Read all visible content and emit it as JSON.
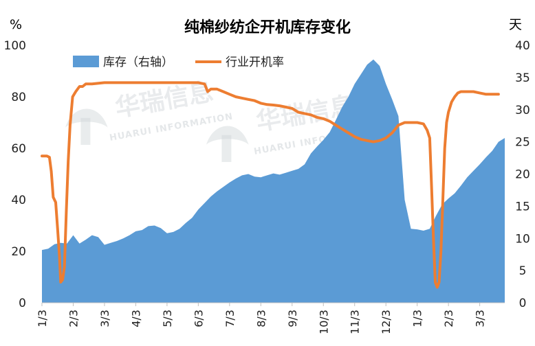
{
  "chart_data": {
    "type": "line",
    "title": "纯棉纱纺企开机库存变化",
    "left_axis_unit": "%",
    "right_axis_unit": "天",
    "left_ylim": [
      0,
      100
    ],
    "right_ylim": [
      0,
      40
    ],
    "left_ticks": [
      "0",
      "20",
      "40",
      "60",
      "80",
      "100"
    ],
    "right_ticks": [
      "0",
      "5",
      "10",
      "15",
      "20",
      "25",
      "30",
      "35",
      "40"
    ],
    "x_ticks": [
      "1/3",
      "2/3",
      "3/3",
      "4/3",
      "5/3",
      "6/3",
      "7/3",
      "8/3",
      "9/3",
      "10/3",
      "11/3",
      "12/3",
      "1/3",
      "2/3",
      "3/3"
    ],
    "x_range": [
      0,
      74
    ],
    "x_tick_positions": [
      0,
      5,
      10,
      15,
      20,
      25,
      30,
      35,
      40,
      45,
      50,
      55,
      60,
      65,
      70
    ],
    "series": [
      {
        "name": "库存（右轴）",
        "kind": "area",
        "axis": "right",
        "color": "#5b9bd5",
        "points": [
          [
            0,
            8.2
          ],
          [
            1,
            8.4
          ],
          [
            2,
            9.1
          ],
          [
            3,
            9.3
          ],
          [
            4,
            9.2
          ],
          [
            5,
            10.5
          ],
          [
            6,
            9.2
          ],
          [
            7,
            9.8
          ],
          [
            8,
            10.5
          ],
          [
            9,
            10.2
          ],
          [
            10,
            9.0
          ],
          [
            11,
            9.3
          ],
          [
            12,
            9.6
          ],
          [
            13,
            10.0
          ],
          [
            14,
            10.5
          ],
          [
            15,
            11.1
          ],
          [
            16,
            11.3
          ],
          [
            17,
            11.9
          ],
          [
            18,
            12.0
          ],
          [
            19,
            11.6
          ],
          [
            20,
            10.8
          ],
          [
            21,
            11.0
          ],
          [
            22,
            11.5
          ],
          [
            23,
            12.4
          ],
          [
            24,
            13.2
          ],
          [
            25,
            14.5
          ],
          [
            26,
            15.5
          ],
          [
            27,
            16.5
          ],
          [
            28,
            17.3
          ],
          [
            29,
            18.0
          ],
          [
            30,
            18.7
          ],
          [
            31,
            19.3
          ],
          [
            32,
            19.8
          ],
          [
            33,
            20.0
          ],
          [
            34,
            19.6
          ],
          [
            35,
            19.5
          ],
          [
            36,
            19.8
          ],
          [
            37,
            20.1
          ],
          [
            38,
            19.9
          ],
          [
            39,
            20.2
          ],
          [
            40,
            20.5
          ],
          [
            41,
            20.8
          ],
          [
            42,
            21.5
          ],
          [
            43,
            23.2
          ],
          [
            44,
            24.3
          ],
          [
            45,
            25.3
          ],
          [
            46,
            26.5
          ],
          [
            47,
            28.4
          ],
          [
            48,
            30.4
          ],
          [
            49,
            32.0
          ],
          [
            50,
            34.0
          ],
          [
            51,
            35.5
          ],
          [
            52,
            37.0
          ],
          [
            53,
            37.8
          ],
          [
            54,
            36.8
          ],
          [
            55,
            34.0
          ],
          [
            56,
            31.6
          ],
          [
            57,
            29.0
          ],
          [
            58,
            16.0
          ],
          [
            59,
            11.5
          ],
          [
            60,
            11.4
          ],
          [
            61,
            11.2
          ],
          [
            62,
            11.5
          ],
          [
            63,
            13.5
          ],
          [
            64,
            15.3
          ],
          [
            65,
            16.2
          ],
          [
            66,
            17.0
          ],
          [
            67,
            18.2
          ],
          [
            68,
            19.5
          ],
          [
            69,
            20.5
          ],
          [
            70,
            21.5
          ],
          [
            71,
            22.6
          ],
          [
            72,
            23.6
          ],
          [
            73,
            25.0
          ],
          [
            74,
            25.6
          ]
        ]
      },
      {
        "name": "行业开机率",
        "kind": "line",
        "axis": "left",
        "color": "#ed7d31",
        "points": [
          [
            0,
            57
          ],
          [
            0.8,
            57
          ],
          [
            1.2,
            56.5
          ],
          [
            1.5,
            51
          ],
          [
            1.8,
            41
          ],
          [
            2.2,
            39
          ],
          [
            2.5,
            29
          ],
          [
            2.8,
            18
          ],
          [
            3.0,
            8
          ],
          [
            3.3,
            9
          ],
          [
            3.6,
            14
          ],
          [
            3.9,
            36
          ],
          [
            4.2,
            55
          ],
          [
            4.5,
            69
          ],
          [
            4.9,
            80
          ],
          [
            5.4,
            82
          ],
          [
            6,
            84
          ],
          [
            6.5,
            84
          ],
          [
            7,
            85
          ],
          [
            8,
            85
          ],
          [
            10,
            85.5
          ],
          [
            15,
            85.5
          ],
          [
            20,
            85.5
          ],
          [
            25,
            85.5
          ],
          [
            26,
            85
          ],
          [
            26.5,
            82
          ],
          [
            27,
            83
          ],
          [
            28,
            83
          ],
          [
            29,
            82
          ],
          [
            30,
            81
          ],
          [
            31,
            80
          ],
          [
            32,
            79.5
          ],
          [
            33,
            79
          ],
          [
            34,
            78.5
          ],
          [
            35,
            77.5
          ],
          [
            36,
            77
          ],
          [
            37,
            76.8
          ],
          [
            38,
            76.5
          ],
          [
            39,
            76
          ],
          [
            40,
            75.5
          ],
          [
            41,
            74
          ],
          [
            42,
            73.5
          ],
          [
            43,
            73
          ],
          [
            44,
            72
          ],
          [
            45,
            71.5
          ],
          [
            46,
            70.5
          ],
          [
            47,
            69
          ],
          [
            48,
            67.5
          ],
          [
            49,
            66
          ],
          [
            50,
            64.5
          ],
          [
            51,
            63.5
          ],
          [
            52,
            63
          ],
          [
            53,
            62.5
          ],
          [
            54,
            63
          ],
          [
            55,
            64
          ],
          [
            56,
            66
          ],
          [
            57,
            69
          ],
          [
            58,
            70
          ],
          [
            59,
            70
          ],
          [
            60,
            70
          ],
          [
            61,
            69.5
          ],
          [
            61.6,
            67
          ],
          [
            62,
            64
          ],
          [
            62.3,
            45
          ],
          [
            62.6,
            25
          ],
          [
            62.9,
            8
          ],
          [
            63.2,
            6
          ],
          [
            63.5,
            8
          ],
          [
            63.8,
            20
          ],
          [
            64.1,
            40
          ],
          [
            64.4,
            60
          ],
          [
            64.7,
            70
          ],
          [
            65,
            74
          ],
          [
            65.5,
            78
          ],
          [
            66,
            80
          ],
          [
            66.5,
            81.5
          ],
          [
            67,
            82
          ],
          [
            68,
            82
          ],
          [
            69,
            82
          ],
          [
            70,
            81.5
          ],
          [
            71,
            81
          ],
          [
            72,
            81
          ],
          [
            73,
            81
          ]
        ]
      }
    ]
  },
  "watermark": {
    "brand": "华瑞信息",
    "english": "HUARUI INFORMATION"
  },
  "legend": {
    "inventory_label": "库存（右轴）",
    "rate_label": "行业开机率"
  }
}
